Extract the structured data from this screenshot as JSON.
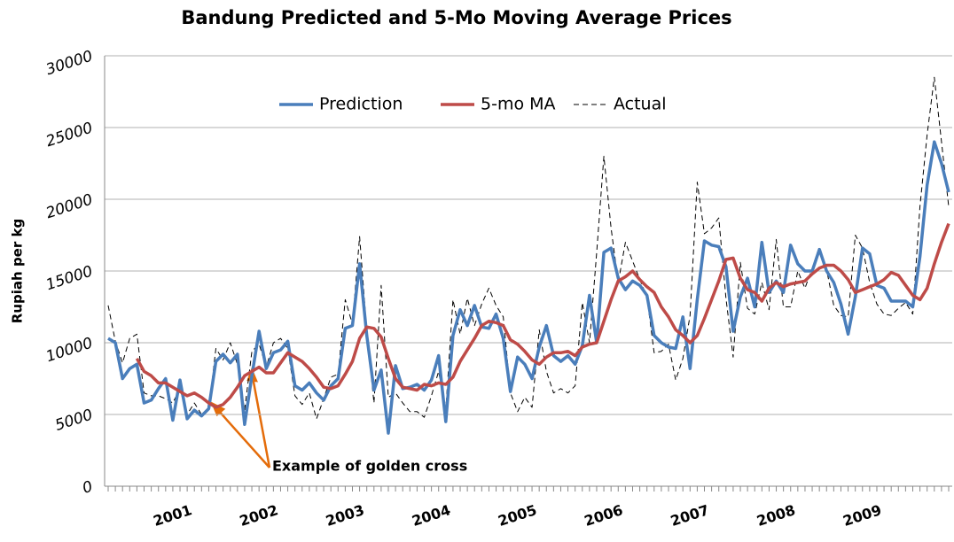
{
  "chart_data": {
    "type": "line",
    "title": "Bandung Predicted and 5-Mo Moving Average Prices",
    "y_label": "Rupiah per kg",
    "annotation": "Example of golden cross",
    "legend": "top",
    "grid": true,
    "ylim": [
      0,
      30000
    ],
    "yticks": [
      0,
      5000,
      10000,
      15000,
      20000,
      25000,
      30000
    ],
    "categories": [
      null,
      null,
      null,
      null,
      null,
      null,
      null,
      null,
      null,
      "2001",
      null,
      null,
      null,
      null,
      null,
      null,
      null,
      null,
      null,
      null,
      null,
      "2002",
      null,
      null,
      null,
      null,
      null,
      null,
      null,
      null,
      null,
      null,
      null,
      "2003",
      null,
      null,
      null,
      null,
      null,
      null,
      null,
      null,
      null,
      null,
      null,
      "2004",
      null,
      null,
      null,
      null,
      null,
      null,
      null,
      null,
      null,
      null,
      null,
      "2005",
      null,
      null,
      null,
      null,
      null,
      null,
      null,
      null,
      null,
      null,
      null,
      "2006",
      null,
      null,
      null,
      null,
      null,
      null,
      null,
      null,
      null,
      null,
      null,
      "2007",
      null,
      null,
      null,
      null,
      null,
      null,
      null,
      null,
      null,
      null,
      null,
      "2008",
      null,
      null,
      null,
      null,
      null,
      null,
      null,
      null,
      null,
      null,
      null,
      "2009",
      null,
      null,
      null,
      null,
      null,
      null,
      null,
      null,
      null,
      null,
      null,
      null
    ],
    "series": [
      {
        "name": "Prediction",
        "color": "#4a7ebb",
        "dash": false,
        "values": [
          10300,
          10000,
          7500,
          8200,
          8500,
          5800,
          6000,
          6800,
          7500,
          4600,
          7400,
          4700,
          5300,
          4900,
          5400,
          8700,
          9200,
          8600,
          9200,
          4300,
          7700,
          10800,
          8200,
          9300,
          9500,
          10100,
          7000,
          6700,
          7200,
          6500,
          6000,
          7000,
          7500,
          11000,
          11200,
          15500,
          10500,
          6700,
          8100,
          3700,
          8400,
          6800,
          6900,
          7100,
          6700,
          7400,
          9100,
          4500,
          10500,
          12300,
          11200,
          12600,
          11100,
          11000,
          12000,
          10300,
          6600,
          9000,
          8500,
          7500,
          9700,
          11200,
          9100,
          8700,
          9100,
          8500,
          9800,
          13300,
          10000,
          16300,
          16600,
          14500,
          13700,
          14300,
          14000,
          13300,
          10500,
          10000,
          9700,
          9600,
          11800,
          8200,
          13000,
          17100,
          16800,
          16700,
          15300,
          10800,
          13200,
          14500,
          12500,
          17000,
          13500,
          14300,
          13500,
          16800,
          15500,
          15000,
          15000,
          16500,
          15000,
          14200,
          12700,
          10600,
          13200,
          16600,
          16200,
          14000,
          13800,
          12900,
          12900,
          12900,
          12500,
          16000,
          21000,
          24000,
          22500,
          20500
        ]
      },
      {
        "name": "5-mo MA",
        "color": "#be4b48",
        "dash": false,
        "values": [
          null,
          null,
          null,
          null,
          8900,
          8000,
          7700,
          7200,
          7200,
          6900,
          6600,
          6300,
          6500,
          6200,
          5800,
          5500,
          5700,
          6200,
          6900,
          7700,
          8000,
          8300,
          7900,
          7900,
          8600,
          9300,
          9000,
          8700,
          8200,
          7600,
          6900,
          6800,
          7000,
          7800,
          8700,
          10300,
          11100,
          11000,
          10400,
          8900,
          7500,
          6900,
          6800,
          6700,
          7100,
          7000,
          7200,
          7100,
          7600,
          8700,
          9500,
          10300,
          11200,
          11500,
          11400,
          11200,
          10200,
          9900,
          9400,
          8800,
          8500,
          9000,
          9300,
          9300,
          9400,
          9100,
          9700,
          9900,
          10000,
          11500,
          13000,
          14300,
          14600,
          15000,
          14400,
          13900,
          13500,
          12500,
          11800,
          10900,
          10500,
          10000,
          10500,
          11700,
          13000,
          14300,
          15800,
          15900,
          14500,
          13700,
          13500,
          12900,
          13800,
          14200,
          13900,
          14100,
          14200,
          14300,
          14800,
          15200,
          15400,
          15400,
          15000,
          14400,
          13500,
          13700,
          13900,
          14100,
          14400,
          14900,
          14700,
          14000,
          13300,
          13000,
          13800,
          15500,
          17000,
          18300
        ]
      },
      {
        "name": "Actual",
        "color": "#000000",
        "dash": true,
        "values": [
          12600,
          10100,
          8600,
          10300,
          10600,
          6500,
          6300,
          6300,
          6100,
          5800,
          6800,
          5000,
          5800,
          5000,
          5300,
          9600,
          8800,
          10000,
          8500,
          5300,
          9400,
          9900,
          8300,
          10000,
          10300,
          9600,
          6300,
          5700,
          6500,
          4700,
          6100,
          7600,
          7800,
          13000,
          11300,
          17400,
          10800,
          5800,
          14000,
          6200,
          6500,
          5800,
          5200,
          5200,
          4800,
          6300,
          8000,
          5300,
          13000,
          10600,
          13100,
          11200,
          12700,
          13800,
          12600,
          11800,
          6500,
          5200,
          6200,
          5500,
          10900,
          8000,
          6500,
          6800,
          6500,
          7000,
          12800,
          10000,
          16300,
          23000,
          18000,
          14200,
          17000,
          15700,
          14400,
          13200,
          9300,
          9400,
          9900,
          7400,
          8900,
          11900,
          21200,
          17600,
          18000,
          18700,
          13100,
          9000,
          15600,
          12400,
          12000,
          14200,
          12300,
          17200,
          12500,
          12500,
          15000,
          13800,
          15200,
          16700,
          15100,
          12600,
          11900,
          11800,
          17500,
          16600,
          14200,
          12700,
          12000,
          11900,
          12400,
          12800,
          12000,
          19500,
          24500,
          28500,
          24000,
          19500
        ]
      }
    ]
  }
}
